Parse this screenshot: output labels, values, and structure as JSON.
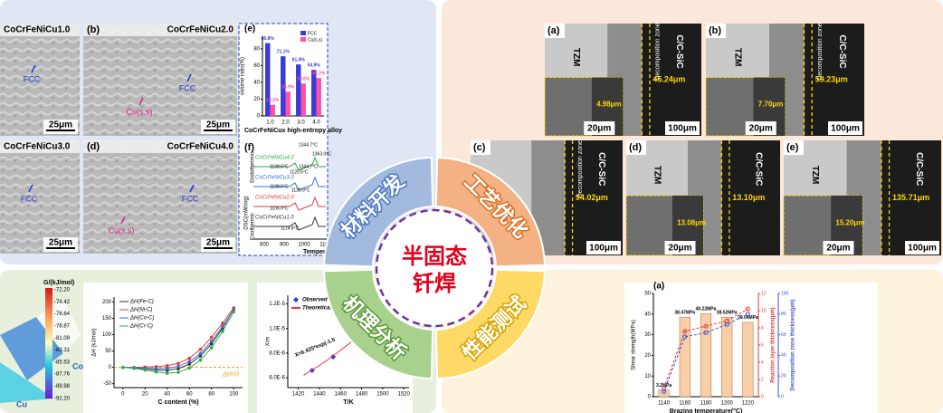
{
  "center": {
    "line1": "半固态",
    "line2": "钎焊"
  },
  "segments": [
    "材料开发",
    "工艺优化",
    "机理分析",
    "性能测试"
  ],
  "alloy_panels": [
    {
      "title": "CoCrFeNiCu1.0",
      "markers": [
        "FCC"
      ],
      "scale": "25μm"
    },
    {
      "tag": "(b)",
      "title": "CoCrFeNiCu2.0",
      "markers": [
        "FCC",
        "Cu(s,s)"
      ],
      "scale": "25μm"
    },
    {
      "title": "CoCrFeNiCu3.0",
      "markers": [
        "FCC"
      ],
      "scale": "25μm"
    },
    {
      "tag": "(d)",
      "title": "CoCrFeNiCu4.0",
      "markers": [
        "FCC",
        "Cu(s,s)"
      ],
      "scale": "25μm"
    }
  ],
  "dsc": {
    "tag": "(f)",
    "curves": [
      "CoCrFeNiCu4.0",
      "CoCrFeNiCu3.0",
      "CoCrFeNiCu2.0",
      "CoCrFeNiCu1.0"
    ],
    "peaks": [
      "1344.7°C",
      "1363.0°C",
      "1108.5°C",
      "1120.5°C",
      "1344.7°C",
      "1108.5°C",
      "1120.9°C",
      "1106.0°C",
      "1114.8°C"
    ],
    "y_label": "DSC(mW/mg)",
    "endo": "Endothermic",
    "exo": "Exothermic",
    "x_label": "Temperat",
    "xticks": [
      "800",
      "900",
      "1000",
      "110"
    ]
  },
  "joint_panels": [
    {
      "tag": "(a)",
      "left": "TZM",
      "right": "C/C-SiC",
      "zone": "Decomposition zone",
      "width": "45.24μm",
      "inset_width": "4.98μm",
      "scale": "100μm",
      "inset_scale": "20μm"
    },
    {
      "tag": "(b)",
      "left": "TZM",
      "right": "C/C-SiC",
      "zone": "Decomposition zone",
      "width": "59.23μm",
      "inset_width": "7.70μm",
      "scale": "100μm",
      "inset_scale": "20μm"
    },
    {
      "tag": "(c)",
      "right": "C/C-SiC",
      "zone": "Decomposition zone",
      "width": "94.02μm",
      "scale": "100μm"
    },
    {
      "tag": "(d)",
      "left": "TZM",
      "right": "C/C-SiC",
      "width": "13.10μm",
      "inset_width": "13.08μm",
      "inset_scale": "20μm"
    },
    {
      "tag": "(e)",
      "left": "TZM",
      "right": "C/C-SiC",
      "width": "135.71μm",
      "inset_width": "15.20μm",
      "scale": "100μm",
      "inset_scale": "20μm"
    }
  ],
  "gibbs": {
    "title": "G/(kJ/mol)",
    "ticks": [
      "-72.20",
      "-74.42",
      "-76.64",
      "-78.87",
      "-81.09",
      "-83.31",
      "-85.53",
      "-87.76",
      "-89.98",
      "-92.20"
    ],
    "labels": [
      "Co",
      "Cu"
    ]
  },
  "chart_data": [
    {
      "type": "bar",
      "tag": "(e)",
      "x_label": "CoCrFeNiCux high-entropy alloy",
      "y_label": "volume ratio(%)",
      "categories": [
        "1.0",
        "2.0",
        "3.0",
        "4.0"
      ],
      "series": [
        {
          "name": "FCC",
          "color": "#3b3bd6",
          "values": [
            86.8,
            71.1,
            61.4,
            54.9
          ],
          "value_labels": [
            "86.8%",
            "71.1%",
            "61.4%",
            "54.9%"
          ]
        },
        {
          "name": "Cu(s,s)",
          "color": "#ff4fa8",
          "values": [
            13.2,
            28.9,
            38.6,
            45.2
          ],
          "value_labels": [
            "13.2%",
            "28.9%",
            "38.6%",
            "45.2%"
          ]
        }
      ],
      "ylim": [
        0,
        95
      ],
      "yticks": [
        0,
        20,
        40,
        60,
        80
      ],
      "legend": "top-right"
    },
    {
      "type": "line",
      "x_label": "C content (%)",
      "y_label": "ΔH (kJ/mol)",
      "annotation": "ΔH=0",
      "x": [
        0,
        10,
        20,
        30,
        40,
        50,
        60,
        70,
        80,
        90,
        100
      ],
      "series": [
        {
          "name": "ΔH(Fe-C)",
          "color": "#333333",
          "values": [
            0,
            -2,
            -5,
            -8,
            -9,
            -4,
            10,
            35,
            72,
            120,
            178
          ]
        },
        {
          "name": "ΔH(Ni-C)",
          "color": "#e53935",
          "values": [
            0,
            0,
            1,
            2,
            5,
            12,
            28,
            55,
            92,
            135,
            182
          ]
        },
        {
          "name": "ΔH(Co-C)",
          "color": "#3a6fd8",
          "values": [
            0,
            -1,
            -3,
            -4,
            -3,
            3,
            18,
            42,
            80,
            125,
            176
          ]
        },
        {
          "name": "ΔH(Cr-C)",
          "color": "#3aa84a",
          "values": [
            0,
            -3,
            -8,
            -14,
            -18,
            -15,
            -2,
            22,
            60,
            110,
            170
          ]
        }
      ],
      "xlim": [
        -8,
        108
      ],
      "xticks": [
        0,
        20,
        40,
        60,
        80,
        100
      ],
      "ylim": [
        -62,
        215
      ],
      "yticks": [
        -50,
        0,
        50,
        100,
        150,
        200
      ],
      "legend": "top-left"
    },
    {
      "type": "scatter",
      "x_label": "T/K",
      "y_label": "X/m",
      "annotation": "X=6.425*exp(-1.5",
      "series": [
        {
          "name": "Observed data",
          "color": "#2b3fd6",
          "x": [
            1433,
            1453
          ],
          "values": [
            6.6e-06,
            7.7e-06
          ]
        },
        {
          "name": "Theoretical data",
          "color": "#e53935",
          "x": [
            1425,
            1440,
            1455,
            1470
          ],
          "values": [
            6.2e-06,
            7e-06,
            7.9e-06,
            8.9e-06
          ]
        }
      ],
      "xlim": [
        1410,
        1525
      ],
      "xticks": [
        1420,
        1440,
        1460,
        1480,
        1500,
        1520
      ],
      "ylim": [
        5.2e-06,
        1.27e-05
      ],
      "yticks": [
        {
          "value": 6e-06,
          "label": "6.0E-6"
        },
        {
          "value": 8e-06,
          "label": "8.0E-6"
        },
        {
          "value": 1e-05,
          "label": "1.0E-5"
        },
        {
          "value": 1.2e-05,
          "label": "1.2E-5"
        }
      ],
      "legend": "top-left"
    },
    {
      "type": "bar",
      "tag": "(a)",
      "x_label": "Brazing temperature(°C)",
      "y_label": "Shear strength(MPa)",
      "y2_label": "Reaction layer thickness(μm)",
      "y3_label": "Decomposition zone thickness(μm)",
      "categories": [
        "1140",
        "1160",
        "1180",
        "1200",
        "1220"
      ],
      "series": [
        {
          "name": "Shear strength(MPa)",
          "color": "#f8cfa8",
          "values": [
            3.2,
            38.5,
            40.2,
            38.5,
            36.0
          ],
          "value_labels": [
            "3.2MPa",
            "38.47MPa",
            "40.22MPa",
            "38.52MPa",
            "36.04MPa"
          ]
        },
        {
          "name": "Reaction layer thickness(μm)",
          "color": "#e53935",
          "axis": "y2",
          "values": [
            1.0,
            7.6,
            8.2,
            8.8,
            10.2
          ]
        },
        {
          "name": "Decomposition zone thickness(μm)",
          "color": "#3a4fd8",
          "axis": "y3",
          "values": [
            5,
            58,
            62,
            70,
            80
          ]
        }
      ],
      "ylim": [
        0,
        50
      ],
      "yticks": [
        0,
        10,
        20,
        30,
        40,
        50
      ],
      "y2lim": [
        0,
        12
      ],
      "y2ticks": [
        0,
        2,
        4,
        6,
        8,
        10,
        12
      ],
      "y3lim": [
        0,
        100
      ],
      "y3ticks": [
        0,
        20,
        40,
        60,
        80,
        100
      ]
    }
  ]
}
